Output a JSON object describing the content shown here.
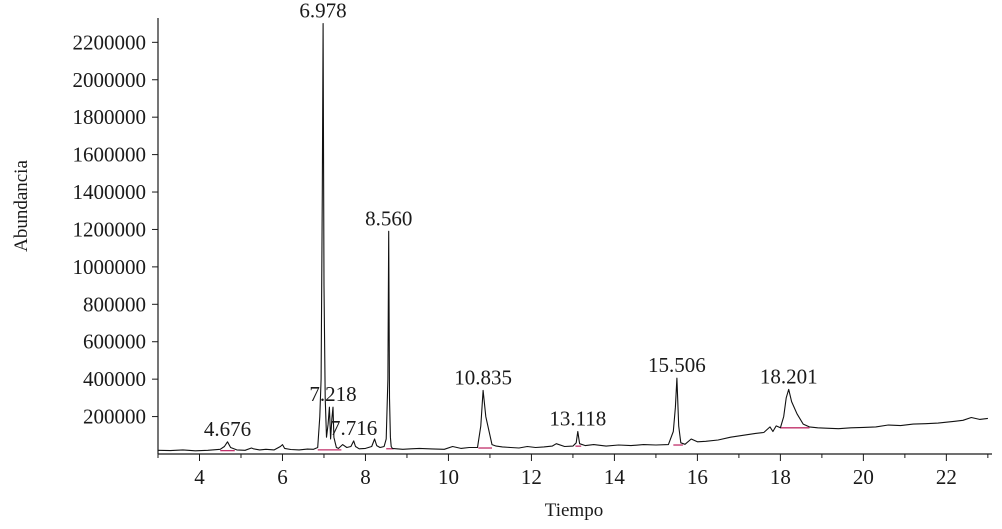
{
  "colors": {
    "trace": "#111111",
    "axis": "#1a1a1a",
    "baseline_marks": "#c0306a"
  },
  "chart_data": {
    "type": "line",
    "title": "",
    "xlabel": "Tiempo",
    "ylabel": "Abundancia",
    "xlim": [
      3.0,
      23.1
    ],
    "ylim": [
      0,
      2330000
    ],
    "x_ticks": [
      4,
      6,
      8,
      10,
      12,
      14,
      16,
      18,
      20,
      22
    ],
    "x_tick_labels": [
      "4",
      "6",
      "8",
      "10",
      "12",
      "14",
      "16",
      "18",
      "20",
      "22"
    ],
    "y_ticks": [
      200000,
      400000,
      600000,
      800000,
      1000000,
      1200000,
      1400000,
      1600000,
      1800000,
      2000000,
      2200000
    ],
    "y_tick_labels": [
      "200000",
      "400000",
      "600000",
      "800000",
      "1000000",
      "1200000",
      "1400000",
      "1600000",
      "1800000",
      "2000000",
      "2200000"
    ],
    "grid": false,
    "legend": "none",
    "series": [
      {
        "x": [
          3.0,
          3.3,
          3.6,
          3.9,
          4.2,
          4.5,
          4.6,
          4.676,
          4.75,
          4.9,
          5.1,
          5.25,
          5.3,
          5.45,
          5.6,
          5.8,
          5.95,
          6.0,
          6.05,
          6.2,
          6.4,
          6.6,
          6.75,
          6.85,
          6.9,
          6.93,
          6.96,
          6.978,
          6.99,
          7.0,
          7.03,
          7.06,
          7.1,
          7.13,
          7.16,
          7.19,
          7.218,
          7.24,
          7.27,
          7.3,
          7.35,
          7.45,
          7.55,
          7.65,
          7.716,
          7.76,
          7.85,
          8.0,
          8.15,
          8.22,
          8.27,
          8.35,
          8.45,
          8.5,
          8.54,
          8.56,
          8.58,
          8.6,
          8.62,
          8.65,
          8.75,
          8.9,
          9.1,
          9.3,
          9.6,
          9.9,
          10.1,
          10.3,
          10.5,
          10.7,
          10.78,
          10.835,
          10.9,
          10.98,
          11.05,
          11.15,
          11.3,
          11.5,
          11.7,
          11.9,
          12.1,
          12.3,
          12.5,
          12.6,
          12.8,
          13.0,
          13.08,
          13.118,
          13.16,
          13.3,
          13.5,
          13.8,
          14.1,
          14.4,
          14.7,
          15.0,
          15.3,
          15.42,
          15.47,
          15.506,
          15.55,
          15.6,
          15.7,
          15.85,
          16.0,
          16.2,
          16.5,
          16.8,
          17.1,
          17.4,
          17.6,
          17.75,
          17.82,
          17.9,
          18.0,
          18.08,
          18.14,
          18.201,
          18.27,
          18.4,
          18.55,
          18.7,
          18.9,
          19.1,
          19.4,
          19.7,
          20.0,
          20.3,
          20.6,
          20.9,
          21.2,
          21.5,
          21.8,
          22.0,
          22.2,
          22.4,
          22.6,
          22.8,
          23.0
        ],
        "y": [
          20000,
          18000,
          22000,
          17000,
          20000,
          25000,
          40000,
          65000,
          35000,
          22000,
          20000,
          32000,
          28000,
          22000,
          25000,
          22000,
          40000,
          50000,
          30000,
          24000,
          22000,
          26000,
          25000,
          35000,
          200000,
          400000,
          1400000,
          2300000,
          1500000,
          900000,
          300000,
          90000,
          160000,
          250000,
          80000,
          190000,
          250000,
          90000,
          60000,
          35000,
          30000,
          50000,
          35000,
          40000,
          70000,
          40000,
          28000,
          30000,
          40000,
          80000,
          45000,
          35000,
          40000,
          80000,
          400000,
          1190000,
          300000,
          90000,
          40000,
          30000,
          28000,
          25000,
          28000,
          30000,
          27000,
          25000,
          40000,
          30000,
          35000,
          35000,
          150000,
          340000,
          200000,
          120000,
          50000,
          42000,
          38000,
          35000,
          32000,
          40000,
          35000,
          38000,
          42000,
          55000,
          40000,
          42000,
          60000,
          120000,
          55000,
          45000,
          50000,
          42000,
          48000,
          45000,
          50000,
          48000,
          50000,
          120000,
          250000,
          405000,
          150000,
          60000,
          52000,
          80000,
          65000,
          68000,
          75000,
          90000,
          100000,
          110000,
          115000,
          145000,
          120000,
          150000,
          140000,
          200000,
          300000,
          345000,
          280000,
          215000,
          160000,
          145000,
          140000,
          138000,
          135000,
          140000,
          142000,
          145000,
          155000,
          152000,
          160000,
          162000,
          165000,
          170000,
          175000,
          180000,
          195000,
          185000,
          190000
        ]
      }
    ],
    "annotations": [
      {
        "text": "4.676",
        "x": 4.676,
        "y": 65000
      },
      {
        "text": "6.978",
        "x": 6.978,
        "y": 2300000
      },
      {
        "text": "7.218",
        "x": 7.218,
        "y": 250000
      },
      {
        "text": "7.716",
        "x": 7.716,
        "y": 70000
      },
      {
        "text": "8.560",
        "x": 8.56,
        "y": 1190000
      },
      {
        "text": "10.835",
        "x": 10.835,
        "y": 340000
      },
      {
        "text": "13.118",
        "x": 13.118,
        "y": 120000
      },
      {
        "text": "15.506",
        "x": 15.506,
        "y": 405000
      },
      {
        "text": "18.201",
        "x": 18.201,
        "y": 345000
      }
    ],
    "integration_baselines": [
      {
        "x": [
          4.5,
          4.85
        ],
        "y": [
          18000,
          18000
        ]
      },
      {
        "x": [
          6.85,
          7.42
        ],
        "y": [
          22000,
          22000
        ]
      },
      {
        "x": [
          8.5,
          8.68
        ],
        "y": [
          28000,
          28000
        ]
      },
      {
        "x": [
          10.72,
          11.05
        ],
        "y": [
          32000,
          32000
        ]
      },
      {
        "x": [
          13.06,
          13.2
        ],
        "y": [
          42000,
          42000
        ]
      },
      {
        "x": [
          15.42,
          15.65
        ],
        "y": [
          48000,
          48000
        ]
      },
      {
        "x": [
          18.0,
          18.7
        ],
        "y": [
          140000,
          140000
        ]
      }
    ]
  }
}
